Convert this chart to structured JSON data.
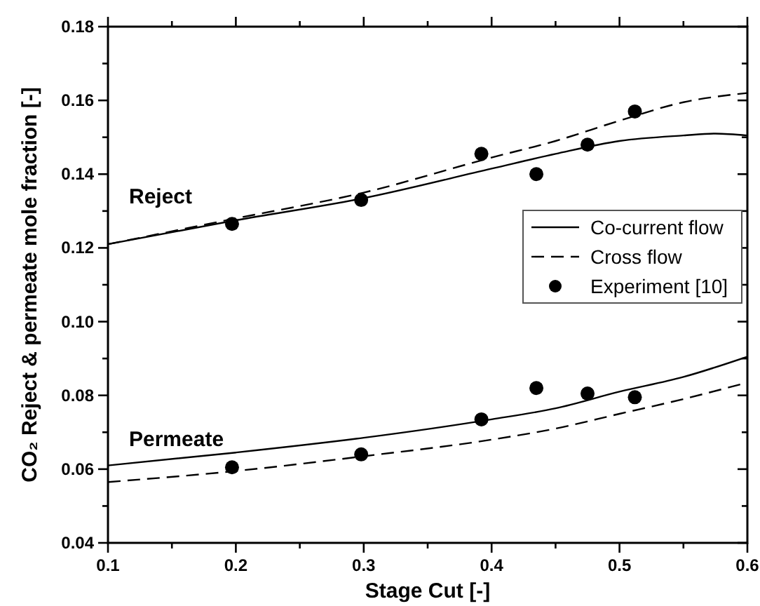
{
  "chart_data": {
    "type": "line",
    "xlabel": "Stage Cut [-]",
    "ylabel": "CO₂ Reject & permeate mole fraction [-]",
    "xlim": [
      0.1,
      0.6
    ],
    "ylim": [
      0.04,
      0.18
    ],
    "xticks": [
      {
        "value": 0.1,
        "label": "0.1"
      },
      {
        "value": 0.15,
        "label": null
      },
      {
        "value": 0.2,
        "label": "0.2"
      },
      {
        "value": 0.25,
        "label": null
      },
      {
        "value": 0.3,
        "label": "0.3"
      },
      {
        "value": 0.35,
        "label": null
      },
      {
        "value": 0.4,
        "label": "0.4"
      },
      {
        "value": 0.45,
        "label": null
      },
      {
        "value": 0.5,
        "label": "0.5"
      },
      {
        "value": 0.55,
        "label": null
      },
      {
        "value": 0.6,
        "label": "0.6"
      }
    ],
    "yticks": [
      {
        "value": 0.04,
        "label": "0.04"
      },
      {
        "value": 0.05,
        "label": null
      },
      {
        "value": 0.06,
        "label": "0.06"
      },
      {
        "value": 0.07,
        "label": null
      },
      {
        "value": 0.08,
        "label": "0.08"
      },
      {
        "value": 0.09,
        "label": null
      },
      {
        "value": 0.1,
        "label": "0.10"
      },
      {
        "value": 0.11,
        "label": null
      },
      {
        "value": 0.12,
        "label": "0.12"
      },
      {
        "value": 0.13,
        "label": null
      },
      {
        "value": 0.14,
        "label": "0.14"
      },
      {
        "value": 0.15,
        "label": null
      },
      {
        "value": 0.16,
        "label": "0.16"
      },
      {
        "value": 0.17,
        "label": null
      },
      {
        "value": 0.18,
        "label": "0.18"
      }
    ],
    "grid": false,
    "legend": "right",
    "series": [
      {
        "name": "Co-current flow",
        "line_style": "solid",
        "color": "#000000",
        "x": [
          0.1,
          0.2,
          0.3,
          0.4,
          0.45,
          0.5,
          0.55,
          0.575,
          0.6
        ],
        "values": [
          0.121,
          0.1275,
          0.1335,
          0.1415,
          0.1455,
          0.149,
          0.1505,
          0.151,
          0.1505
        ]
      },
      {
        "name": "Cross flow",
        "line_style": "dashed",
        "color": "#000000",
        "x": [
          0.1,
          0.2,
          0.3,
          0.4,
          0.45,
          0.5,
          0.55,
          0.6
        ],
        "values": [
          0.121,
          0.128,
          0.135,
          0.1445,
          0.149,
          0.1545,
          0.1595,
          0.162
        ]
      },
      {
        "name": "Experiment [10]",
        "type": "scatter",
        "marker": "circle",
        "color": "#000000",
        "x": [
          0.197,
          0.298,
          0.392,
          0.435,
          0.475,
          0.512
        ],
        "values": [
          0.1265,
          0.133,
          0.1455,
          0.14,
          0.148,
          0.157
        ]
      },
      {
        "line_style": "solid",
        "color": "#000000",
        "x": [
          0.1,
          0.2,
          0.3,
          0.4,
          0.45,
          0.5,
          0.55,
          0.6
        ],
        "values": [
          0.061,
          0.0645,
          0.0685,
          0.0735,
          0.0765,
          0.081,
          0.085,
          0.0905
        ]
      },
      {
        "line_style": "dashed",
        "color": "#000000",
        "x": [
          0.1,
          0.2,
          0.3,
          0.4,
          0.45,
          0.5,
          0.55,
          0.6
        ],
        "values": [
          0.0565,
          0.0595,
          0.0635,
          0.068,
          0.071,
          0.075,
          0.079,
          0.0835
        ]
      },
      {
        "type": "scatter",
        "marker": "circle",
        "color": "#000000",
        "x": [
          0.197,
          0.298,
          0.392,
          0.435,
          0.475,
          0.512
        ],
        "values": [
          0.0605,
          0.064,
          0.0735,
          0.082,
          0.0805,
          0.0795
        ]
      }
    ],
    "annotations": [
      "Reject",
      "Permeate"
    ]
  }
}
